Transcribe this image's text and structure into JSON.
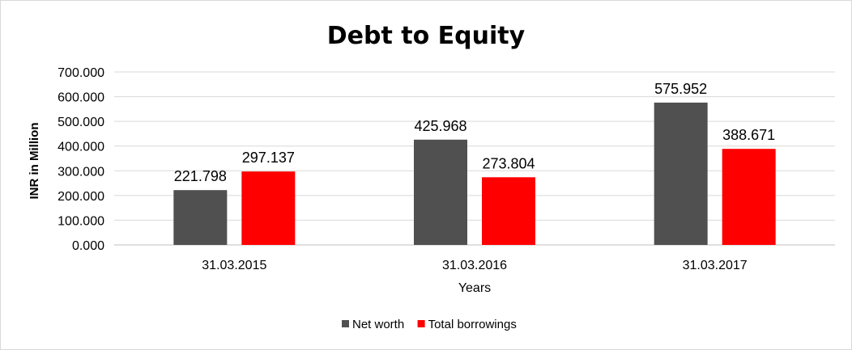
{
  "chart_data": {
    "type": "bar",
    "title": "Debt to Equity",
    "xlabel": "Years",
    "ylabel": "INR in Million",
    "categories": [
      "31.03.2015",
      "31.03.2016",
      "31.03.2017"
    ],
    "series": [
      {
        "name": "Net worth",
        "color": "#505050",
        "values": [
          221.798,
          425.968,
          575.952
        ],
        "labels": [
          "221.798",
          "425.968",
          "575.952"
        ]
      },
      {
        "name": "Total borrowings",
        "color": "#ff0000",
        "values": [
          297.137,
          273.804,
          388.671
        ],
        "labels": [
          "297.137",
          "273.804",
          "388.671"
        ]
      }
    ],
    "ylim": [
      0,
      700
    ],
    "yticks": [
      "0.000",
      "100.000",
      "200.000",
      "300.000",
      "400.000",
      "500.000",
      "600.000",
      "700.000"
    ],
    "grid": true,
    "legend": "bottom"
  }
}
